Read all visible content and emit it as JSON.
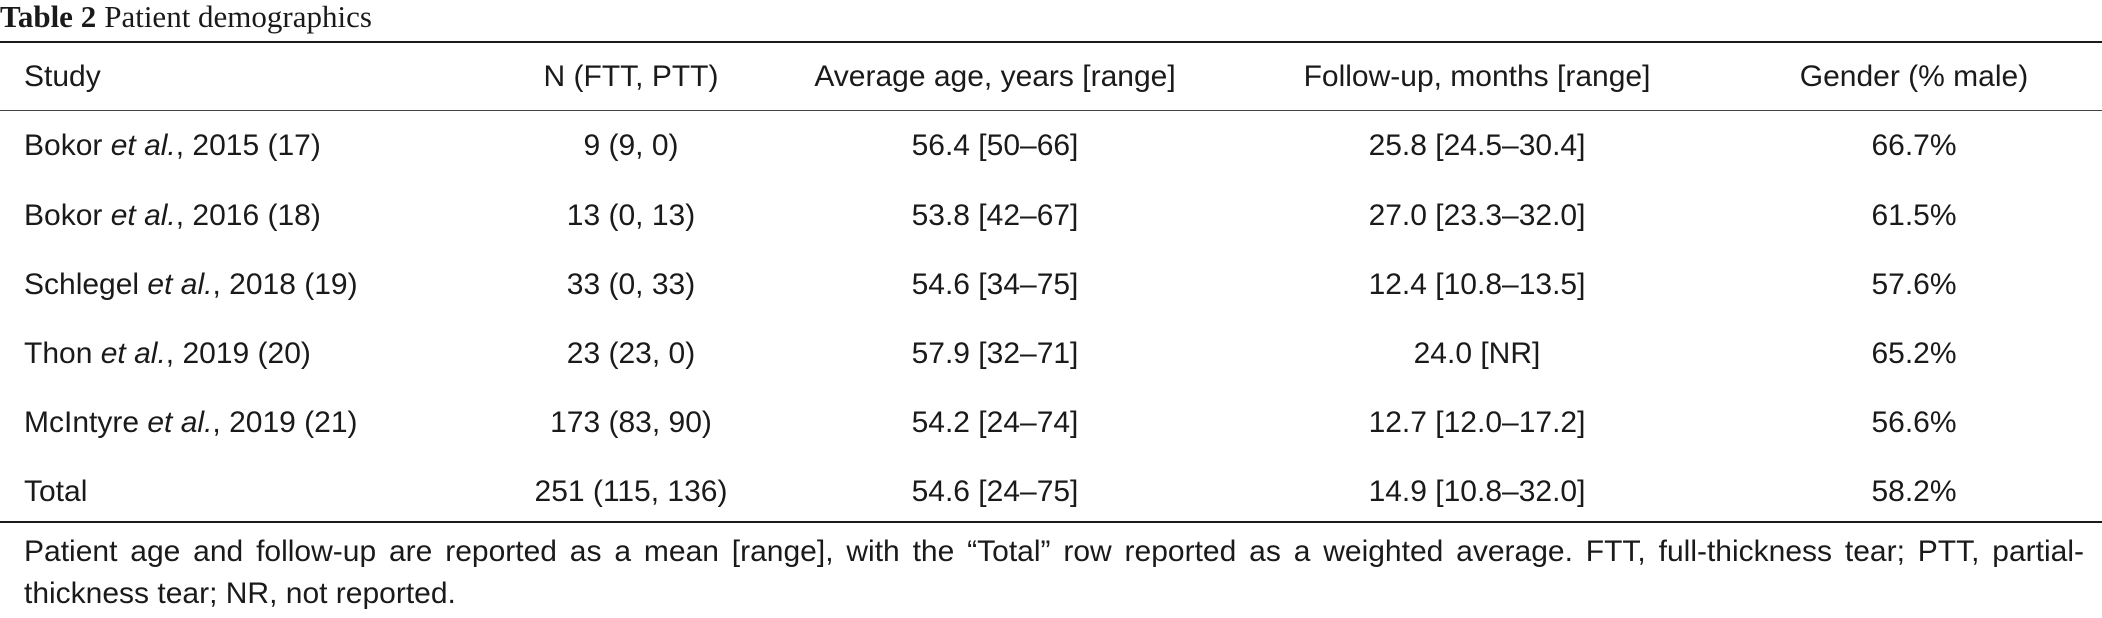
{
  "caption": {
    "label": "Table 2",
    "title": "Patient demographics"
  },
  "table": {
    "headers": [
      "Study",
      "N (FTT, PTT)",
      "Average age, years [range]",
      "Follow-up, months [range]",
      "Gender (% male)"
    ],
    "rows": [
      {
        "study": {
          "author": "Bokor",
          "etal": "et al.",
          "rest": ", 2015 (17)"
        },
        "n": "9 (9, 0)",
        "age": "56.4 [50–66]",
        "followup": "25.8 [24.5–30.4]",
        "gender": "66.7%"
      },
      {
        "study": {
          "author": "Bokor",
          "etal": "et al.",
          "rest": ", 2016 (18)"
        },
        "n": "13 (0, 13)",
        "age": "53.8 [42–67]",
        "followup": "27.0 [23.3–32.0]",
        "gender": "61.5%"
      },
      {
        "study": {
          "author": "Schlegel",
          "etal": "et al.",
          "rest": ", 2018 (19)"
        },
        "n": "33 (0, 33)",
        "age": "54.6 [34–75]",
        "followup": "12.4 [10.8–13.5]",
        "gender": "57.6%"
      },
      {
        "study": {
          "author": "Thon",
          "etal": "et al.",
          "rest": ", 2019 (20)"
        },
        "n": "23 (23, 0)",
        "age": "57.9 [32–71]",
        "followup": "24.0 [NR]",
        "gender": "65.2%"
      },
      {
        "study": {
          "author": "McIntyre",
          "etal": "et al.",
          "rest": ", 2019 (21)"
        },
        "n": "173 (83, 90)",
        "age": "54.2 [24–74]",
        "followup": "12.7 [12.0–17.2]",
        "gender": "56.6%"
      },
      {
        "study": {
          "author": "Total",
          "etal": "",
          "rest": ""
        },
        "n": "251 (115, 136)",
        "age": "54.6 [24–75]",
        "followup": "14.9 [10.8–32.0]",
        "gender": "58.2%"
      }
    ]
  },
  "footnote": "Patient age and follow-up are reported as a mean [range], with the “Total” row reported as a weighted average. FTT, full-thickness tear; PTT, partial-thickness tear; NR, not reported."
}
